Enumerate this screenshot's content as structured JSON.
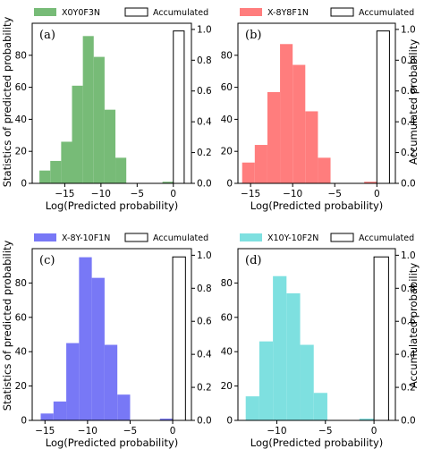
{
  "figure": {
    "ylabel_left": "Statistics of predicted probability",
    "ylabel_right": "Accumulated probability"
  },
  "chart_data": [
    {
      "type": "bar",
      "panel_label": "(a)",
      "legend": {
        "series": "X0Y0F3N",
        "accumulated": "Accumulated"
      },
      "color": "#77bb77",
      "bin_edges": [
        -18.5,
        -17,
        -15.5,
        -14,
        -12.5,
        -11,
        -9.5,
        -8,
        -6.5,
        -5
      ],
      "values": [
        8,
        14,
        26,
        61,
        92,
        79,
        46,
        16,
        0
      ],
      "tail_bar": {
        "x0": -1.5,
        "x1": 0,
        "value": 1
      },
      "accumulated": {
        "x0": 0,
        "x1": 1.5,
        "value": 0.99
      },
      "xlim": [
        -19.5,
        2.5
      ],
      "ylim": [
        0,
        100
      ],
      "ylim_right": [
        0,
        1.04
      ],
      "xticks": [
        -15,
        -10,
        -5,
        0
      ],
      "yticks": [
        0,
        20,
        40,
        60,
        80
      ],
      "yticks_right": [
        0.0,
        0.2,
        0.4,
        0.6,
        0.8,
        1.0
      ],
      "xlabel": "Log(Predicted probability)"
    },
    {
      "type": "bar",
      "panel_label": "(b)",
      "legend": {
        "series": "X-8Y8F1N",
        "accumulated": "Accumulated"
      },
      "color": "#ff7d7d",
      "bin_edges": [
        -16,
        -14.5,
        -13,
        -11.5,
        -10,
        -8.5,
        -7,
        -5.5
      ],
      "values": [
        13,
        24,
        57,
        87,
        74,
        45,
        16
      ],
      "tail_bar": {
        "x0": -1.5,
        "x1": 0,
        "value": 1
      },
      "accumulated": {
        "x0": 0,
        "x1": 1.5,
        "value": 0.99
      },
      "xlim": [
        -16.5,
        2.2
      ],
      "ylim": [
        0,
        100
      ],
      "ylim_right": [
        0,
        1.04
      ],
      "xticks": [
        -15,
        -10,
        -5,
        0
      ],
      "yticks": [
        0,
        20,
        40,
        60,
        80
      ],
      "yticks_right": [
        0.0,
        0.2,
        0.4,
        0.6,
        0.8,
        1.0
      ],
      "xlabel": "Log(Predicted probability)"
    },
    {
      "type": "bar",
      "panel_label": "(c)",
      "legend": {
        "series": "X-8Y-10F1N",
        "accumulated": "Accumulated"
      },
      "color": "#7878f6",
      "bin_edges": [
        -15.5,
        -14,
        -12.5,
        -11,
        -9.5,
        -8,
        -6.5,
        -5
      ],
      "values": [
        4,
        11,
        45,
        95,
        83,
        44,
        15
      ],
      "tail_bar": {
        "x0": -1.5,
        "x1": 0,
        "value": 1
      },
      "accumulated": {
        "x0": 0,
        "x1": 1.5,
        "value": 0.99
      },
      "xlim": [
        -16.5,
        2.2
      ],
      "ylim": [
        0,
        100
      ],
      "ylim_right": [
        0,
        1.04
      ],
      "xticks": [
        -15,
        -10,
        -5,
        0
      ],
      "yticks": [
        0,
        20,
        40,
        60,
        80
      ],
      "yticks_right": [
        0.0,
        0.2,
        0.4,
        0.6,
        0.8,
        1.0
      ],
      "xlabel": "Log(Predicted probability)"
    },
    {
      "type": "bar",
      "panel_label": "(d)",
      "legend": {
        "series": "X10Y-10F2N",
        "accumulated": "Accumulated"
      },
      "color": "#7ee0e0",
      "bin_edges": [
        -13.2,
        -11.8,
        -10.4,
        -9,
        -7.6,
        -6.2,
        -4.8
      ],
      "values": [
        14,
        46,
        84,
        74,
        44,
        16
      ],
      "tail_bar": {
        "x0": -1.5,
        "x1": 0,
        "value": 1
      },
      "accumulated": {
        "x0": 0,
        "x1": 1.5,
        "value": 0.99
      },
      "xlim": [
        -14,
        2.2
      ],
      "ylim": [
        0,
        100
      ],
      "ylim_right": [
        0,
        1.04
      ],
      "xticks": [
        -10,
        -5,
        0
      ],
      "yticks": [
        0,
        20,
        40,
        60,
        80
      ],
      "yticks_right": [
        0.0,
        0.2,
        0.4,
        0.6,
        0.8,
        1.0
      ],
      "xlabel": "Log(Predicted probability)"
    }
  ]
}
